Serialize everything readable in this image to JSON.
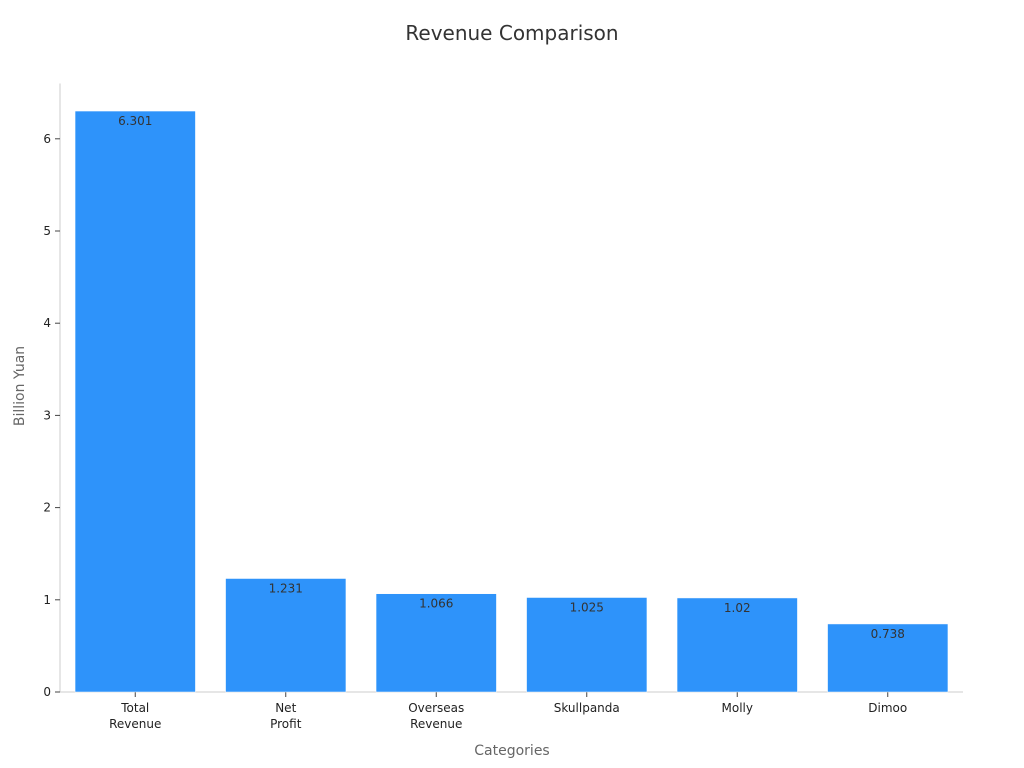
{
  "chart_data": {
    "type": "bar",
    "title": "Revenue Comparison",
    "xlabel": "Categories",
    "ylabel": "Billion Yuan",
    "categories": [
      [
        "Total",
        "Revenue"
      ],
      [
        "Net",
        "Profit"
      ],
      [
        "Overseas",
        "Revenue"
      ],
      [
        "Skullpanda"
      ],
      [
        "Molly"
      ],
      [
        "Dimoo"
      ]
    ],
    "values": [
      6.301,
      1.231,
      1.066,
      1.025,
      1.02,
      0.738
    ],
    "value_labels": [
      "6.301",
      "1.231",
      "1.066",
      "1.025",
      "1.02",
      "0.738"
    ],
    "yticks": [
      0,
      1,
      2,
      3,
      4,
      5,
      6
    ],
    "ylim": [
      0,
      6.6
    ],
    "grid": false,
    "legend": "none",
    "colors": {
      "bar": "#2e93fa",
      "bar_edge": "#ffffff",
      "axis": "#cccccc",
      "title": "#333333",
      "axis_label": "#666666",
      "tick_label": "#222222",
      "value_label": "#333333"
    }
  }
}
